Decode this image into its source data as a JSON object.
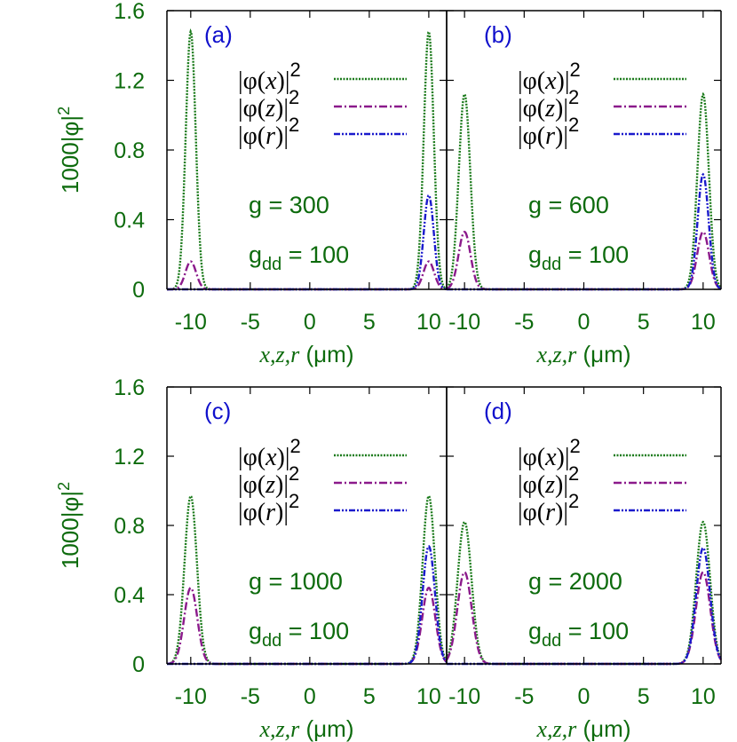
{
  "chart_data": {
    "type": "line",
    "xlabel": "x,z,r (μm)",
    "ylabel": "1000|φ|²",
    "xlim": [
      -12,
      12
    ],
    "ylim": [
      0,
      1.6
    ],
    "xticks": [
      -10,
      -5,
      0,
      5,
      10
    ],
    "yticks": [
      0,
      0.4,
      0.8,
      1.2,
      1.6
    ],
    "xtick_labels": [
      "-10",
      "-5",
      "0",
      "5",
      "10"
    ],
    "ytick_labels": [
      "0",
      "0.4",
      "0.8",
      "1.2",
      "1.6"
    ],
    "legend": [
      "|φ(x)|²",
      "|φ(z)|²",
      "|φ(r)|²"
    ],
    "legend_position": "top-right",
    "colors": {
      "x": "#1a7a1a",
      "z": "#8b1a8b",
      "r": "#1a1acc",
      "text": "#0d6b0d",
      "panel_label": "#1010cc"
    },
    "panels": [
      {
        "label": "(a)",
        "g_text": "g = 300",
        "gdd_text": "g",
        "gdd_sub": "dd",
        "gdd_value": " = 100",
        "series": [
          {
            "name": "|φ(x)|²",
            "peaks": [
              {
                "center": -10.0,
                "height": 1.48,
                "sigma": 0.42
              },
              {
                "center": 10.0,
                "height": 1.48,
                "sigma": 0.42
              }
            ]
          },
          {
            "name": "|φ(z)|²",
            "peaks": [
              {
                "center": -10.0,
                "height": 0.16,
                "sigma": 0.45
              },
              {
                "center": 10.0,
                "height": 0.16,
                "sigma": 0.45
              }
            ]
          },
          {
            "name": "|φ(r)|²",
            "peaks": [
              {
                "center": 10.0,
                "height": 0.54,
                "sigma": 0.42
              }
            ]
          }
        ]
      },
      {
        "label": "(b)",
        "g_text": "g = 600",
        "gdd_text": "g",
        "gdd_sub": "dd",
        "gdd_value": " = 100",
        "series": [
          {
            "name": "|φ(x)|²",
            "peaks": [
              {
                "center": -10.0,
                "height": 1.12,
                "sigma": 0.48
              },
              {
                "center": 10.0,
                "height": 1.12,
                "sigma": 0.48
              }
            ]
          },
          {
            "name": "|φ(z)|²",
            "peaks": [
              {
                "center": -10.0,
                "height": 0.33,
                "sigma": 0.5
              },
              {
                "center": 10.0,
                "height": 0.33,
                "sigma": 0.5
              }
            ]
          },
          {
            "name": "|φ(r)|²",
            "peaks": [
              {
                "center": 10.0,
                "height": 0.66,
                "sigma": 0.46
              }
            ]
          }
        ]
      },
      {
        "label": "(c)",
        "g_text": "g = 1000",
        "gdd_text": "g",
        "gdd_sub": "dd",
        "gdd_value": " = 100",
        "series": [
          {
            "name": "|φ(x)|²",
            "peaks": [
              {
                "center": -10.0,
                "height": 0.97,
                "sigma": 0.52
              },
              {
                "center": 10.0,
                "height": 0.97,
                "sigma": 0.52
              }
            ]
          },
          {
            "name": "|φ(z)|²",
            "peaks": [
              {
                "center": -10.0,
                "height": 0.44,
                "sigma": 0.55
              },
              {
                "center": 10.0,
                "height": 0.44,
                "sigma": 0.55
              }
            ]
          },
          {
            "name": "|φ(r)|²",
            "peaks": [
              {
                "center": 10.0,
                "height": 0.68,
                "sigma": 0.52
              }
            ]
          }
        ]
      },
      {
        "label": "(d)",
        "g_text": "g = 2000",
        "gdd_text": "g",
        "gdd_sub": "dd",
        "gdd_value": " = 100",
        "series": [
          {
            "name": "|φ(x)|²",
            "peaks": [
              {
                "center": -10.0,
                "height": 0.82,
                "sigma": 0.58
              },
              {
                "center": 10.0,
                "height": 0.82,
                "sigma": 0.58
              }
            ]
          },
          {
            "name": "|φ(z)|²",
            "peaks": [
              {
                "center": -10.0,
                "height": 0.53,
                "sigma": 0.6
              },
              {
                "center": 10.0,
                "height": 0.53,
                "sigma": 0.6
              }
            ]
          },
          {
            "name": "|φ(r)|²",
            "peaks": [
              {
                "center": 10.0,
                "height": 0.67,
                "sigma": 0.58
              }
            ]
          }
        ]
      }
    ]
  }
}
